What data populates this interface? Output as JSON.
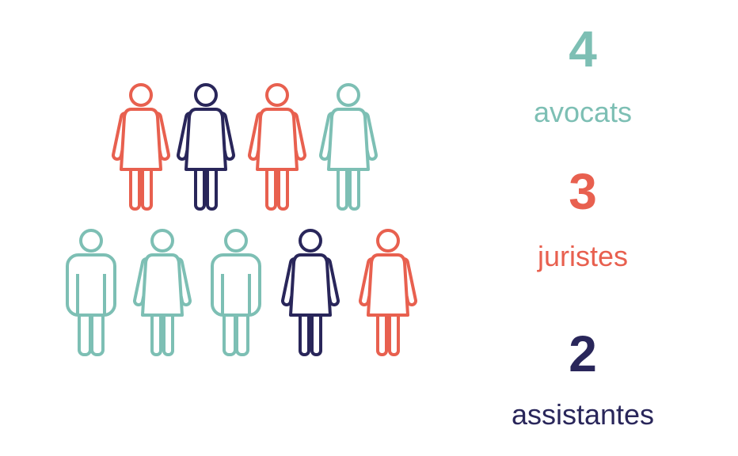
{
  "stats": [
    {
      "number": "4",
      "label": "avocats",
      "color": "#7dbfb4"
    },
    {
      "number": "3",
      "label": "juristes",
      "color": "#e8604f"
    },
    {
      "number": "2",
      "label": "assistantes",
      "color": "#29265a"
    }
  ]
}
